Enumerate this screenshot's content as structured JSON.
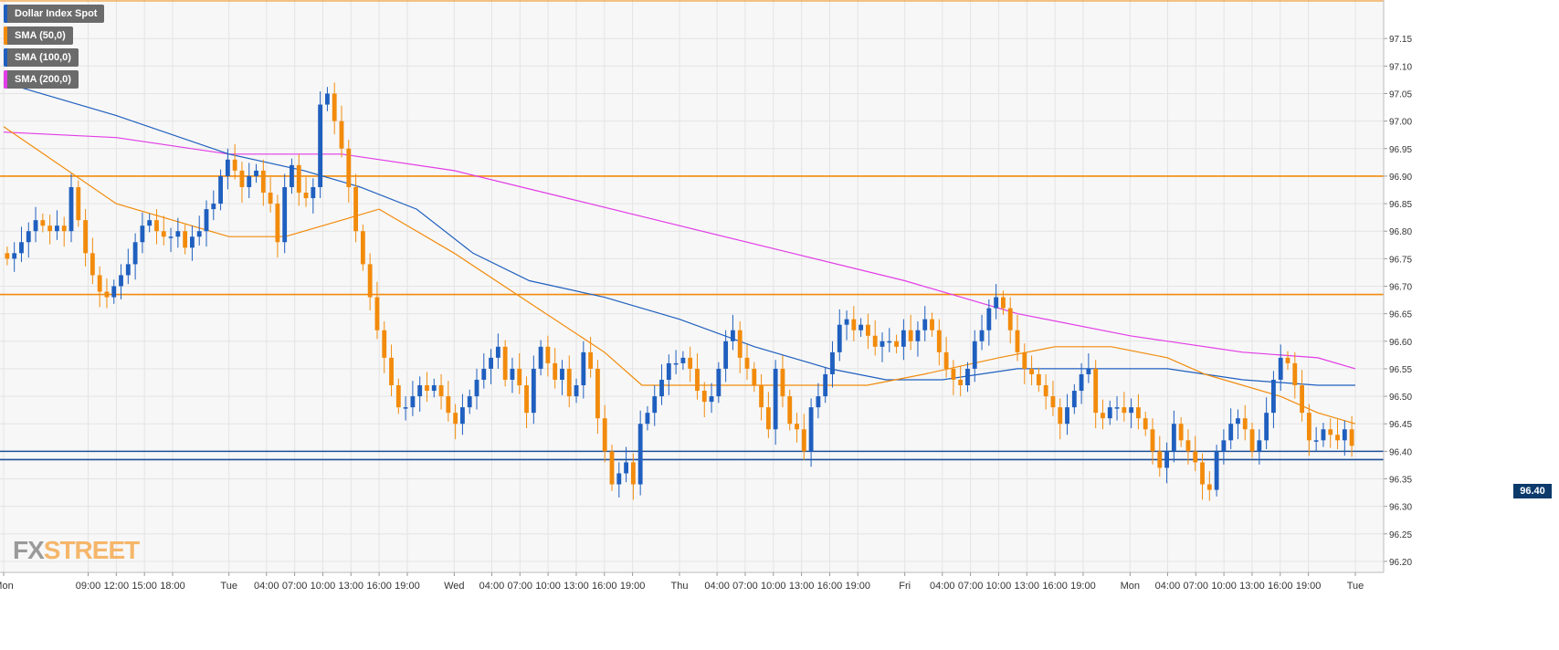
{
  "legend": {
    "items": [
      {
        "label": "Dollar Index Spot",
        "color": "#1f5fbf"
      },
      {
        "label": "SMA (50,0)",
        "color": "#f28b0c"
      },
      {
        "label": "SMA (100,0)",
        "color": "#1f5fbf"
      },
      {
        "label": "SMA (200,0)",
        "color": "#e23ce6"
      }
    ]
  },
  "logo": {
    "fx": "FX",
    "street": "STREET"
  },
  "price_tag": "96.40",
  "colors": {
    "up": "#1f5fbf",
    "down": "#f28b0c",
    "sma50": "#f28b0c",
    "sma100": "#1f5fbf",
    "sma200": "#e23ce6",
    "resistance": "#f28b0c",
    "support": "#1e4f96",
    "grid": "#e4e4e4",
    "background": "#f7f7f7"
  },
  "chart_data": {
    "type": "candlestick",
    "title": "Dollar Index Spot",
    "timeframe": "hourly",
    "ylim": [
      96.18,
      97.22
    ],
    "y_ticks": [
      "96.20",
      "96.25",
      "96.30",
      "96.35",
      "96.40",
      "96.45",
      "96.50",
      "96.55",
      "96.60",
      "96.65",
      "96.70",
      "96.75",
      "96.80",
      "96.85",
      "96.90",
      "96.95",
      "97.00",
      "97.05",
      "97.10",
      "97.15"
    ],
    "x_tick_labels": [
      "Mon",
      "09:00",
      "12:00",
      "15:00",
      "18:00",
      "Tue",
      "04:00",
      "07:00",
      "10:00",
      "13:00",
      "16:00",
      "19:00",
      "Wed",
      "04:00",
      "07:00",
      "10:00",
      "13:00",
      "16:00",
      "19:00",
      "Thu",
      "04:00",
      "07:00",
      "10:00",
      "13:00",
      "16:00",
      "19:00",
      "Fri",
      "04:00",
      "07:00",
      "10:00",
      "13:00",
      "16:00",
      "19:00",
      "Mon",
      "04:00",
      "07:00",
      "10:00",
      "13:00",
      "16:00",
      "19:00",
      "Tue"
    ],
    "x_tick_hours": [
      0,
      9,
      12,
      15,
      18,
      24,
      28,
      31,
      34,
      37,
      40,
      43,
      48,
      52,
      55,
      58,
      61,
      64,
      67,
      72,
      76,
      79,
      82,
      85,
      88,
      91,
      96,
      100,
      103,
      106,
      109,
      112,
      115,
      120,
      124,
      127,
      130,
      133,
      136,
      139,
      144
    ],
    "close_series": [
      96.75,
      96.76,
      96.78,
      96.8,
      96.82,
      96.81,
      96.8,
      96.81,
      96.8,
      96.88,
      96.82,
      96.76,
      96.72,
      96.69,
      96.68,
      96.7,
      96.72,
      96.74,
      96.78,
      96.81,
      96.82,
      96.8,
      96.79,
      96.79,
      96.8,
      96.77,
      96.79,
      96.8,
      96.84,
      96.85,
      96.9,
      96.93,
      96.91,
      96.88,
      96.9,
      96.91,
      96.87,
      96.85,
      96.78,
      96.88,
      96.92,
      96.87,
      96.86,
      96.88,
      97.03,
      97.05,
      97.0,
      96.95,
      96.88,
      96.8,
      96.74,
      96.68,
      96.62,
      96.57,
      96.52,
      96.48,
      96.48,
      96.5,
      96.52,
      96.51,
      96.52,
      96.5,
      96.47,
      96.45,
      96.48,
      96.5,
      96.53,
      96.55,
      96.57,
      96.59,
      96.53,
      96.55,
      96.52,
      96.47,
      96.55,
      96.59,
      96.56,
      96.53,
      96.55,
      96.5,
      96.52,
      96.58,
      96.55,
      96.46,
      96.4,
      96.34,
      96.36,
      96.38,
      96.34,
      96.45,
      96.47,
      96.5,
      96.53,
      96.56,
      96.56,
      96.57,
      96.55,
      96.51,
      96.49,
      96.5,
      96.55,
      96.6,
      96.62,
      96.57,
      96.55,
      96.52,
      96.48,
      96.44,
      96.55,
      96.5,
      96.45,
      96.44,
      96.4,
      96.48,
      96.5,
      96.54,
      96.58,
      96.63,
      96.64,
      96.62,
      96.63,
      96.61,
      96.59,
      96.6,
      96.6,
      96.59,
      96.62,
      96.6,
      96.62,
      96.64,
      96.62,
      96.58,
      96.55,
      96.53,
      96.52,
      96.55,
      96.6,
      96.62,
      96.66,
      96.68,
      96.66,
      96.62,
      96.58,
      96.55,
      96.54,
      96.52,
      96.5,
      96.48,
      96.45,
      96.48,
      96.51,
      96.54,
      96.55,
      96.47,
      96.46,
      96.48,
      96.48,
      96.47,
      96.48,
      96.46,
      96.44,
      96.4,
      96.37,
      96.4,
      96.45,
      96.42,
      96.4,
      96.38,
      96.34,
      96.33,
      96.4,
      96.42,
      96.45,
      96.46,
      96.44,
      96.4,
      96.42,
      96.47,
      96.53,
      96.57,
      96.56,
      96.52,
      96.47,
      96.42,
      96.42,
      96.44,
      96.43,
      96.42,
      96.44,
      96.41
    ],
    "sma50_points": [
      [
        0,
        96.99
      ],
      [
        12,
        96.85
      ],
      [
        24,
        96.79
      ],
      [
        30,
        96.79
      ],
      [
        36,
        96.82
      ],
      [
        40,
        96.84
      ],
      [
        48,
        96.76
      ],
      [
        56,
        96.67
      ],
      [
        64,
        96.58
      ],
      [
        68,
        96.52
      ],
      [
        76,
        96.52
      ],
      [
        84,
        96.52
      ],
      [
        92,
        96.52
      ],
      [
        98,
        96.54
      ],
      [
        106,
        96.57
      ],
      [
        112,
        96.59
      ],
      [
        118,
        96.59
      ],
      [
        124,
        96.57
      ],
      [
        128,
        96.54
      ],
      [
        136,
        96.5
      ],
      [
        140,
        96.47
      ],
      [
        144,
        96.45
      ]
    ],
    "sma100_points": [
      [
        0,
        97.07
      ],
      [
        12,
        97.01
      ],
      [
        24,
        96.94
      ],
      [
        32,
        96.91
      ],
      [
        38,
        96.88
      ],
      [
        44,
        96.84
      ],
      [
        50,
        96.76
      ],
      [
        56,
        96.71
      ],
      [
        64,
        96.68
      ],
      [
        72,
        96.64
      ],
      [
        80,
        96.59
      ],
      [
        88,
        96.55
      ],
      [
        94,
        96.53
      ],
      [
        100,
        96.53
      ],
      [
        108,
        96.55
      ],
      [
        116,
        96.55
      ],
      [
        124,
        96.55
      ],
      [
        132,
        96.53
      ],
      [
        140,
        96.52
      ],
      [
        144,
        96.52
      ]
    ],
    "sma200_points": [
      [
        0,
        96.98
      ],
      [
        12,
        96.97
      ],
      [
        24,
        96.94
      ],
      [
        36,
        96.94
      ],
      [
        48,
        96.91
      ],
      [
        60,
        96.86
      ],
      [
        72,
        96.81
      ],
      [
        84,
        96.76
      ],
      [
        96,
        96.71
      ],
      [
        108,
        96.65
      ],
      [
        120,
        96.61
      ],
      [
        132,
        96.58
      ],
      [
        140,
        96.57
      ],
      [
        144,
        96.55
      ]
    ],
    "resistance_levels": [
      96.9,
      96.685
    ],
    "support_levels": [
      96.4,
      96.385
    ],
    "last_price": 96.4
  }
}
